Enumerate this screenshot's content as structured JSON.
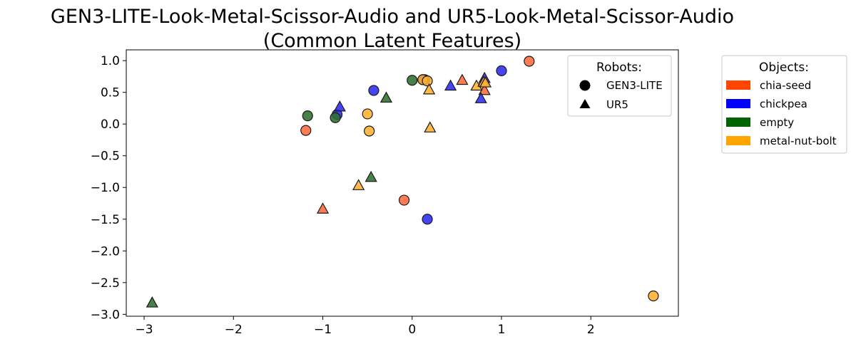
{
  "chart_data": {
    "type": "scatter",
    "title_line1": "GEN3-LITE-Look-Metal-Scissor-Audio and UR5-Look-Metal-Scissor-Audio",
    "title_line2": "(Common Latent Features)",
    "xlim": [
      -3.2,
      2.98
    ],
    "ylim": [
      -3.03,
      1.17
    ],
    "x_ticks": [
      -3,
      -2,
      -1,
      0,
      1,
      2
    ],
    "y_ticks": [
      1.0,
      0.5,
      0.0,
      -0.5,
      -1.0,
      -1.5,
      -2.0,
      -2.5,
      -3.0
    ],
    "robot_legend": {
      "title": "Robots:",
      "entries": [
        {
          "label": "GEN3-LITE",
          "marker": "circle"
        },
        {
          "label": "UR5",
          "marker": "triangle"
        }
      ]
    },
    "object_legend": {
      "title": "Objects:",
      "entries": [
        {
          "label": "chia-seed",
          "color": "#ff4500"
        },
        {
          "label": "chickpea",
          "color": "#0000ff"
        },
        {
          "label": "empty",
          "color": "#006400"
        },
        {
          "label": "metal-nut-bolt",
          "color": "#ffa500"
        }
      ]
    },
    "points": [
      {
        "x": -1.19,
        "y": -0.1,
        "robot": "GEN3-LITE",
        "object": "chia-seed"
      },
      {
        "x": -0.09,
        "y": -1.2,
        "robot": "GEN3-LITE",
        "object": "chia-seed"
      },
      {
        "x": 1.31,
        "y": 0.99,
        "robot": "GEN3-LITE",
        "object": "chia-seed"
      },
      {
        "x": 0.12,
        "y": 0.7,
        "robot": "GEN3-LITE",
        "object": "chia-seed"
      },
      {
        "x": -0.43,
        "y": 0.53,
        "robot": "GEN3-LITE",
        "object": "chickpea"
      },
      {
        "x": -0.84,
        "y": 0.15,
        "robot": "GEN3-LITE",
        "object": "chickpea"
      },
      {
        "x": 0.17,
        "y": -1.5,
        "robot": "GEN3-LITE",
        "object": "chickpea"
      },
      {
        "x": 1.0,
        "y": 0.84,
        "robot": "GEN3-LITE",
        "object": "chickpea"
      },
      {
        "x": 0.14,
        "y": 0.7,
        "robot": "GEN3-LITE",
        "object": "chickpea"
      },
      {
        "x": -1.17,
        "y": 0.13,
        "robot": "GEN3-LITE",
        "object": "empty"
      },
      {
        "x": -0.86,
        "y": 0.1,
        "robot": "GEN3-LITE",
        "object": "empty"
      },
      {
        "x": 0.0,
        "y": 0.69,
        "robot": "GEN3-LITE",
        "object": "empty"
      },
      {
        "x": -0.5,
        "y": 0.16,
        "robot": "GEN3-LITE",
        "object": "metal-nut-bolt"
      },
      {
        "x": -0.48,
        "y": -0.11,
        "robot": "GEN3-LITE",
        "object": "metal-nut-bolt"
      },
      {
        "x": 0.12,
        "y": 0.7,
        "robot": "GEN3-LITE",
        "object": "metal-nut-bolt"
      },
      {
        "x": 0.17,
        "y": 0.68,
        "robot": "GEN3-LITE",
        "object": "metal-nut-bolt"
      },
      {
        "x": 2.7,
        "y": -2.71,
        "robot": "GEN3-LITE",
        "object": "metal-nut-bolt"
      },
      {
        "x": -1.0,
        "y": -1.34,
        "robot": "UR5",
        "object": "chia-seed"
      },
      {
        "x": 0.56,
        "y": 0.69,
        "robot": "UR5",
        "object": "chia-seed"
      },
      {
        "x": 0.81,
        "y": 0.53,
        "robot": "UR5",
        "object": "chia-seed"
      },
      {
        "x": -0.81,
        "y": 0.27,
        "robot": "UR5",
        "object": "chickpea"
      },
      {
        "x": 0.43,
        "y": 0.6,
        "robot": "UR5",
        "object": "chickpea"
      },
      {
        "x": 0.77,
        "y": 0.4,
        "robot": "UR5",
        "object": "chickpea"
      },
      {
        "x": 0.81,
        "y": 0.72,
        "robot": "UR5",
        "object": "chickpea"
      },
      {
        "x": -2.91,
        "y": -2.82,
        "robot": "UR5",
        "object": "empty"
      },
      {
        "x": -0.46,
        "y": -0.84,
        "robot": "UR5",
        "object": "empty"
      },
      {
        "x": -0.29,
        "y": 0.41,
        "robot": "UR5",
        "object": "empty"
      },
      {
        "x": -0.6,
        "y": -0.97,
        "robot": "UR5",
        "object": "metal-nut-bolt"
      },
      {
        "x": 0.19,
        "y": 0.54,
        "robot": "UR5",
        "object": "metal-nut-bolt"
      },
      {
        "x": 0.2,
        "y": -0.06,
        "robot": "UR5",
        "object": "metal-nut-bolt"
      },
      {
        "x": 0.72,
        "y": 0.6,
        "robot": "UR5",
        "object": "metal-nut-bolt"
      },
      {
        "x": 0.8,
        "y": 0.66,
        "robot": "UR5",
        "object": "metal-nut-bolt"
      },
      {
        "x": 0.82,
        "y": 0.65,
        "robot": "UR5",
        "object": "metal-nut-bolt"
      }
    ],
    "marker_colors": {
      "chia-seed": "#ff6a3d",
      "chickpea": "#2b2bf2",
      "empty": "#2f6f2f",
      "metal-nut-bolt": "#ffb030"
    }
  }
}
